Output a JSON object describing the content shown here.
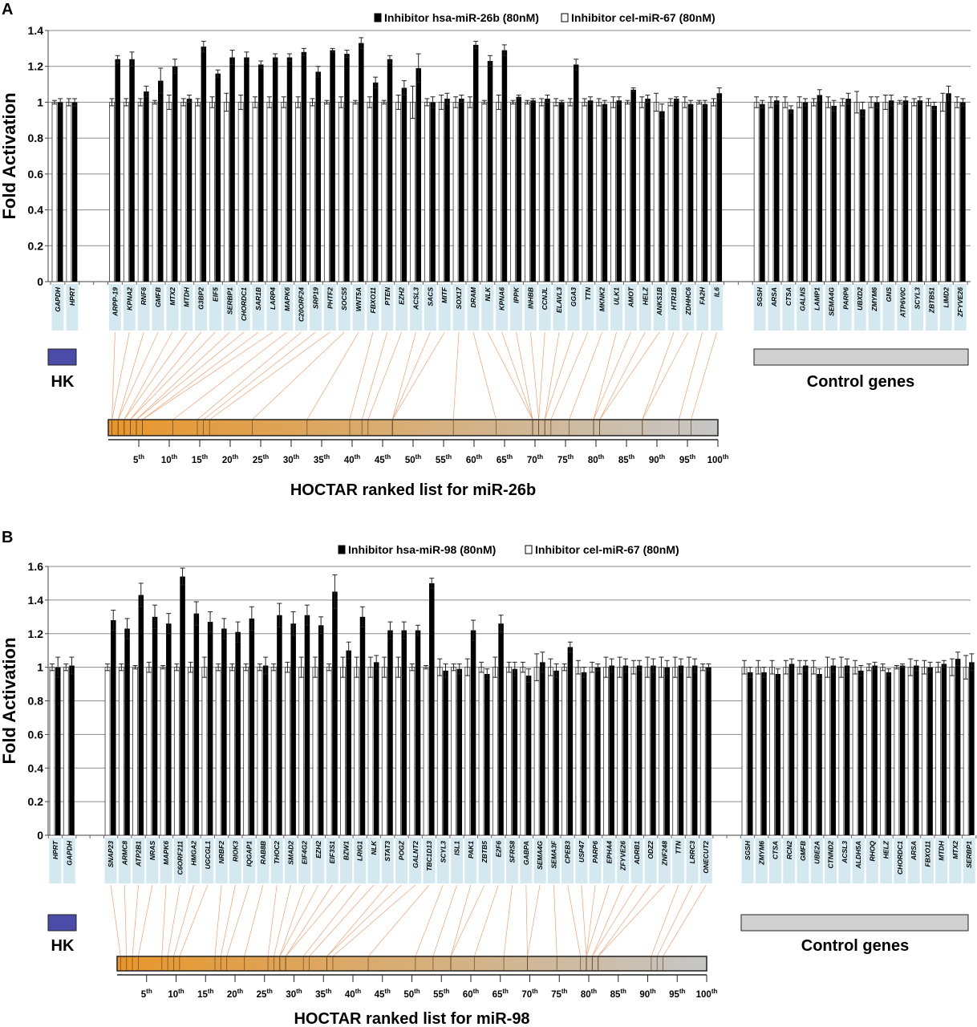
{
  "chart_data": [
    {
      "type": "bar",
      "panel_letter": "A",
      "ylabel": "Fold Activation",
      "ylim": [
        0,
        1.4
      ],
      "yticks": [
        "0",
        "0.2",
        "0.4",
        "0.6",
        "0.8",
        "1",
        "1.2",
        "1.4"
      ],
      "grid": true,
      "legend_position": "top-center",
      "legend": [
        {
          "name": "Inhibitor hsa-miR-26b (80nM)",
          "color": "#000000"
        },
        {
          "name": "Inhibitor cel-miR-67 (80nM)",
          "color": "#ffffff"
        }
      ],
      "categories": [
        "GAPDH",
        "HPRT",
        "ARPP-19",
        "KPNA2",
        "RNF6",
        "GMFB",
        "MTX2",
        "MTDH",
        "G3BP2",
        "EIF5",
        "SERBP1",
        "CHORDC1",
        "SAR1B",
        "LARP4",
        "MAPK6",
        "C20ORF24",
        "SRP19",
        "PHTF2",
        "SOCS5",
        "WNT5A",
        "FBXO11",
        "PTEN",
        "EZH2",
        "ACSL3",
        "SACS",
        "MITF",
        "SOX17",
        "DRAM",
        "NLK",
        "KPNA6",
        "IPPK",
        "INHBB",
        "CCNJL",
        "ELAVL3",
        "GGA3",
        "TTN",
        "MKNK2",
        "ULK1",
        "AMOT",
        "HELZ",
        "ANKS1B",
        "HTR1B",
        "ZDHHC6",
        "FA2H",
        "IL6",
        "SGSH",
        "ARSA",
        "CTSA",
        "GALNS",
        "LAMP1",
        "SEMA4G",
        "PARP6",
        "UBXD2",
        "ZMYM6",
        "GNS",
        "ATP6V0C",
        "SCYL3",
        "ZBTB51",
        "LIMD2",
        "ZFYVE26"
      ],
      "groups": {
        "hk_count": 2,
        "hoctar_count": 43,
        "control_count": 15
      },
      "group_labels": {
        "hk": "HK",
        "control": "Control genes"
      },
      "group_colors": {
        "hk": "#4b4ba8",
        "control": "#d0d0d0",
        "label_box": "#d3e9ef",
        "connector": "#f0a070",
        "rank_start": "#e8962a",
        "rank_end": "#c6c6c6"
      },
      "series": [
        {
          "name": "Inhibitor hsa-miR-26b (80nM)",
          "values": [
            1.0,
            1.0,
            1.24,
            1.24,
            1.06,
            1.12,
            1.2,
            1.02,
            1.31,
            1.16,
            1.25,
            1.25,
            1.21,
            1.25,
            1.25,
            1.28,
            1.17,
            1.29,
            1.27,
            1.33,
            1.11,
            1.24,
            1.08,
            1.19,
            1.0,
            1.02,
            1.02,
            1.32,
            1.23,
            1.29,
            1.03,
            1.01,
            1.02,
            1.0,
            1.21,
            1.01,
            0.99,
            1.01,
            1.07,
            1.02,
            0.95,
            1.02,
            0.99,
            0.99,
            1.05,
            0.99,
            1.01,
            0.96,
            1.0,
            1.04,
            0.98,
            1.02,
            0.96,
            1.0,
            1.01,
            1.01,
            1.01,
            0.98,
            1.05,
            1.0
          ],
          "errors": [
            0.02,
            0.02,
            0.02,
            0.04,
            0.03,
            0.07,
            0.04,
            0.02,
            0.03,
            0.02,
            0.04,
            0.03,
            0.02,
            0.02,
            0.02,
            0.02,
            0.03,
            0.01,
            0.02,
            0.03,
            0.03,
            0.02,
            0.04,
            0.08,
            0.03,
            0.03,
            0.02,
            0.02,
            0.03,
            0.03,
            0.01,
            0.01,
            0.02,
            0.01,
            0.03,
            0.02,
            0.02,
            0.02,
            0.01,
            0.02,
            0.04,
            0.01,
            0.02,
            0.02,
            0.03,
            0.02,
            0.02,
            0.02,
            0.02,
            0.03,
            0.03,
            0.03,
            0.04,
            0.03,
            0.03,
            0.02,
            0.02,
            0.02,
            0.04,
            0.02
          ]
        },
        {
          "name": "Inhibitor cel-miR-67 (80nM)",
          "values": [
            1,
            1,
            1,
            1,
            1,
            1,
            1,
            1,
            1,
            1,
            1,
            1,
            1,
            1,
            1,
            1,
            1,
            1,
            1,
            1,
            1,
            1,
            1,
            1,
            1,
            1,
            1,
            1,
            1,
            1,
            1,
            1,
            1,
            1,
            1,
            1,
            1,
            1,
            1,
            1,
            1,
            1,
            1,
            1,
            1,
            1,
            1,
            1,
            1,
            1,
            1,
            1,
            1,
            1,
            1,
            1,
            1,
            1,
            1,
            1
          ],
          "errors": [
            0.01,
            0.02,
            0.02,
            0.02,
            0.02,
            0.01,
            0.04,
            0.02,
            0.02,
            0.03,
            0.05,
            0.04,
            0.03,
            0.03,
            0.03,
            0.03,
            0.02,
            0.01,
            0.03,
            0.01,
            0.03,
            0.01,
            0.04,
            0.09,
            0.02,
            0.04,
            0.03,
            0.03,
            0.01,
            0.04,
            0.01,
            0.01,
            0.02,
            0.02,
            0.02,
            0.02,
            0.02,
            0.03,
            0.01,
            0.03,
            0.05,
            0.02,
            0.03,
            0.01,
            0.02,
            0.03,
            0.03,
            0.03,
            0.03,
            0.02,
            0.03,
            0.02,
            0.06,
            0.03,
            0.04,
            0.01,
            0.02,
            0.02,
            0.05,
            0.03
          ]
        }
      ],
      "hoctar_ranks": [
        1,
        1,
        2,
        2,
        3,
        3,
        4,
        4,
        5,
        5,
        6,
        6,
        11,
        15,
        16,
        17,
        24,
        33,
        40,
        42,
        43,
        47,
        47,
        47,
        57,
        64,
        70,
        70,
        70,
        71,
        71,
        72,
        72,
        73,
        76,
        80,
        80,
        81,
        81,
        88,
        88,
        94,
        96
      ],
      "rank_axis": {
        "ticks": [
          "5",
          "10",
          "15",
          "20",
          "25",
          "30",
          "35",
          "40",
          "45",
          "50",
          "55",
          "60",
          "65",
          "70",
          "75",
          "80",
          "85",
          "90",
          "95",
          "100"
        ],
        "suffix": "th",
        "range": [
          0,
          100
        ]
      },
      "rank_title": "HOCTAR ranked list for miR-26b"
    },
    {
      "type": "bar",
      "panel_letter": "B",
      "ylabel": "Fold Activation",
      "ylim": [
        0,
        1.6
      ],
      "yticks": [
        "0",
        "0.2",
        "0.4",
        "0.6",
        "0.8",
        "1",
        "1.2",
        "1.4",
        "1.6"
      ],
      "grid": true,
      "legend_position": "top-center",
      "legend": [
        {
          "name": "Inhibitor hsa-miR-98 (80nM)",
          "color": "#000000"
        },
        {
          "name": "Inhibitor cel-miR-67 (80nM)",
          "color": "#ffffff"
        }
      ],
      "categories": [
        "HPRT",
        "GAPDH",
        "SNAP23",
        "ARMC8",
        "ATP2B1",
        "NRAS",
        "MAPK6",
        "C6ORF211",
        "HMGA2",
        "UGCGL1",
        "NRBF2",
        "RIOK3",
        "IQGAP1",
        "RAB8B",
        "THOC2",
        "SMAD2",
        "EIF4G2",
        "EZH2",
        "EIF3S1",
        "BZW1",
        "LRIG1",
        "NLK",
        "STAT3",
        "POGZ",
        "GALNT2",
        "TBC1D13",
        "SCYL3",
        "ISL1",
        "PAK1",
        "ZBTB5",
        "E2F6",
        "SFRS8",
        "GABPA",
        "SEMA4G",
        "SEMA3F",
        "CPEB3",
        "USP47",
        "PARP6",
        "EPHA4",
        "ZFYVE26",
        "ADRB1",
        "ODZ2",
        "ZNF248",
        "TTN",
        "LRRC3",
        "ONECUT2",
        "SGSH",
        "ZMYM6",
        "CTSA",
        "RCN2",
        "GMFB",
        "UBE2A",
        "CTNND2",
        "ACSL3",
        "ALDH5A",
        "RHOQ",
        "HELZ",
        "CHORDC1",
        "ARSA",
        "FBXO11",
        "MTDH",
        "MTX2",
        "SERBP1"
      ],
      "groups": {
        "hk_count": 2,
        "hoctar_count": 44,
        "control_count": 17
      },
      "group_labels": {
        "hk": "HK",
        "control": "Control genes"
      },
      "group_colors": {
        "hk": "#4b4ba8",
        "control": "#d0d0d0",
        "label_box": "#d3e9ef",
        "connector": "#f0a070",
        "rank_start": "#e8962a",
        "rank_end": "#c6c6c6"
      },
      "series": [
        {
          "name": "Inhibitor hsa-miR-98 (80nM)",
          "values": [
            1.0,
            1.01,
            1.28,
            1.23,
            1.43,
            1.3,
            1.26,
            1.54,
            1.32,
            1.27,
            1.23,
            1.21,
            1.29,
            1.01,
            1.31,
            1.26,
            1.31,
            1.25,
            1.45,
            1.1,
            1.3,
            1.03,
            1.22,
            1.22,
            1.22,
            1.5,
            0.98,
            0.99,
            1.22,
            0.96,
            1.26,
            0.99,
            0.95,
            1.03,
            0.98,
            1.12,
            0.97,
            1.0,
            1.01,
            1.01,
            1.01,
            1.01,
            1.0,
            1.01,
            1.01,
            1.0,
            0.97,
            0.97,
            0.96,
            1.02,
            1.01,
            0.96,
            1.01,
            1.01,
            0.98,
            1.01,
            0.97,
            1.01,
            1.01,
            1.0,
            1.02,
            1.05,
            1.03
          ],
          "errors": [
            0.06,
            0.05,
            0.06,
            0.06,
            0.07,
            0.07,
            0.06,
            0.05,
            0.07,
            0.06,
            0.06,
            0.06,
            0.07,
            0.05,
            0.07,
            0.07,
            0.06,
            0.05,
            0.1,
            0.05,
            0.06,
            0.04,
            0.05,
            0.05,
            0.03,
            0.03,
            0.04,
            0.03,
            0.06,
            0.03,
            0.05,
            0.04,
            0.04,
            0.06,
            0.04,
            0.03,
            0.03,
            0.02,
            0.04,
            0.04,
            0.03,
            0.04,
            0.04,
            0.04,
            0.04,
            0.02,
            0.03,
            0.03,
            0.03,
            0.03,
            0.03,
            0.03,
            0.04,
            0.04,
            0.03,
            0.02,
            0.02,
            0.01,
            0.03,
            0.03,
            0.02,
            0.04,
            0.05
          ]
        },
        {
          "name": "Inhibitor cel-miR-67 (80nM)",
          "values": [
            1,
            1,
            1,
            1,
            1,
            1,
            1,
            1,
            1,
            1,
            1,
            1,
            1,
            1,
            1,
            1,
            1,
            1,
            1,
            1,
            1,
            1,
            1,
            1,
            1,
            1,
            1,
            1,
            1,
            1,
            1,
            1,
            1,
            1,
            1,
            1,
            1,
            1,
            1,
            1,
            1,
            1,
            1,
            1,
            1,
            1,
            1,
            1,
            1,
            1,
            1,
            1,
            1,
            1,
            1,
            1,
            1,
            1,
            1,
            1,
            1,
            1,
            1
          ],
          "errors": [
            0.02,
            0.02,
            0.02,
            0.02,
            0.01,
            0.03,
            0.01,
            0.02,
            0.03,
            0.06,
            0.02,
            0.02,
            0.02,
            0.02,
            0.02,
            0.03,
            0.06,
            0.06,
            0.02,
            0.06,
            0.06,
            0.06,
            0.06,
            0.06,
            0.02,
            0.01,
            0.05,
            0.02,
            0.05,
            0.03,
            0.06,
            0.03,
            0.03,
            0.08,
            0.05,
            0.02,
            0.04,
            0.03,
            0.06,
            0.06,
            0.04,
            0.06,
            0.06,
            0.06,
            0.06,
            0.02,
            0.04,
            0.04,
            0.04,
            0.04,
            0.04,
            0.04,
            0.06,
            0.06,
            0.04,
            0.02,
            0.02,
            0.01,
            0.05,
            0.04,
            0.03,
            0.05,
            0.07
          ]
        }
      ],
      "hoctar_ranks": [
        1,
        2,
        3,
        4,
        8,
        9,
        10,
        11,
        17,
        18,
        19,
        22,
        26,
        27,
        28,
        28,
        29,
        29,
        32,
        33,
        36,
        36,
        37,
        43,
        51,
        54,
        57,
        57,
        61,
        66,
        70,
        70,
        75,
        79,
        80,
        80,
        80,
        81,
        81,
        82,
        82,
        91,
        92,
        93
      ],
      "rank_axis": {
        "ticks": [
          "5",
          "10",
          "15",
          "20",
          "25",
          "30",
          "35",
          "40",
          "45",
          "50",
          "55",
          "60",
          "65",
          "70",
          "75",
          "80",
          "85",
          "90",
          "95",
          "100"
        ],
        "suffix": "th",
        "range": [
          0,
          100
        ]
      },
      "rank_title": "HOCTAR ranked list for miR-98"
    }
  ]
}
